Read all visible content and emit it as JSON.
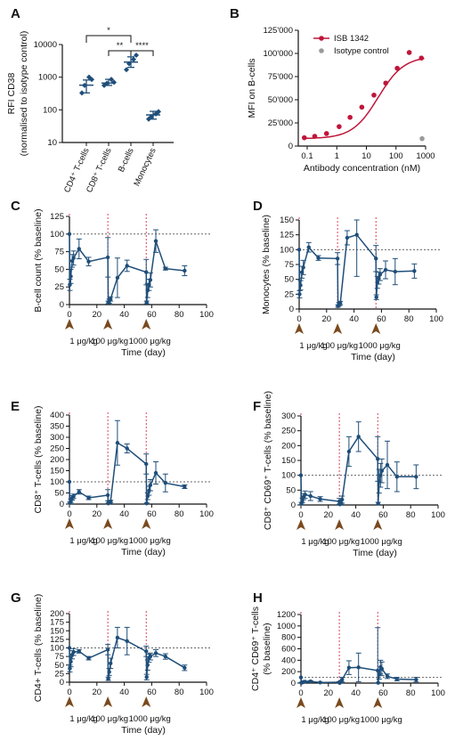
{
  "colors": {
    "series": "#1f4e79",
    "dose_line": "#d9435b",
    "baseline": "#666666",
    "arrow": "#7a4a1e",
    "fit": "#c0153a",
    "isotype": "#9a9a9a",
    "axis": "#111111"
  },
  "chart_data": [
    {
      "panel": "A",
      "type": "scatter",
      "ylabel": "RFI CD38",
      "ylabel2": "(normalised to isotype control)",
      "yscale": "log",
      "ylim": [
        10,
        10000
      ],
      "yticks": [
        "10",
        "100",
        "1000",
        "10000"
      ],
      "categories": [
        "CD4⁺ T-cells",
        "CD8⁺ T-cells",
        "B-cells",
        "Monocytes"
      ],
      "points": [
        [
          330,
          560,
          1000,
          850
        ],
        [
          560,
          650,
          860,
          700
        ],
        [
          1700,
          2600,
          3500,
          4700
        ],
        [
          52,
          62,
          75,
          88
        ]
      ],
      "means": [
        570,
        660,
        2900,
        70
      ],
      "sd_low": [
        330,
        560,
        2000,
        52
      ],
      "sd_high": [
        820,
        860,
        4200,
        90
      ],
      "significance": [
        {
          "from": 0,
          "to": 2,
          "label": "*"
        },
        {
          "from": 1,
          "to": 2,
          "label": "**"
        },
        {
          "from": 2,
          "to": 3,
          "label": "****"
        }
      ]
    },
    {
      "panel": "B",
      "type": "scatter",
      "xlabel": "Antibody concentration (nM)",
      "ylabel": "MFI on B-cells",
      "xscale": "log",
      "xlim": [
        0.05,
        1000
      ],
      "ylim": [
        0,
        125000
      ],
      "xticks": [
        {
          "v": 0.1,
          "t": "0.1"
        },
        {
          "v": 1,
          "t": "1"
        },
        {
          "v": 10,
          "t": "10"
        },
        {
          "v": 100,
          "t": "100"
        },
        {
          "v": 1000,
          "t": "1000"
        }
      ],
      "yticks": [
        {
          "v": 0,
          "t": "0"
        },
        {
          "v": 25000,
          "t": "25'000"
        },
        {
          "v": 50000,
          "t": "50'000"
        },
        {
          "v": 75000,
          "t": "75'000"
        },
        {
          "v": 100000,
          "t": "100'000"
        },
        {
          "v": 125000,
          "t": "125'000"
        }
      ],
      "legend": [
        "ISB 1342",
        "Isotype control"
      ],
      "series": [
        {
          "name": "ISB 1342",
          "x": [
            0.08,
            0.18,
            0.45,
            1.2,
            2.8,
            7,
            18,
            45,
            110,
            280,
            720
          ],
          "y": [
            9000,
            10500,
            13500,
            21000,
            31000,
            42000,
            55000,
            68000,
            84000,
            101000,
            95000
          ]
        },
        {
          "name": "Isotype control",
          "x": [
            760
          ],
          "y": [
            8000
          ]
        }
      ],
      "fit": {
        "bottom": 8000,
        "top": 97000,
        "ec50": 25,
        "hill": 1
      }
    },
    {
      "panel": "C",
      "type": "line",
      "xlabel": "Time (day)",
      "ylabel": "B-cell count (% baseline)",
      "xlim": [
        0,
        100
      ],
      "ylim": [
        0,
        125
      ],
      "ystep": 25,
      "baseline": 100,
      "dose_days": [
        0,
        28,
        56
      ],
      "dose_labels": [
        "1 μg/kg",
        "100 μg/kg",
        "1000 μg/kg"
      ],
      "x": [
        0,
        0.3,
        1,
        2,
        3,
        7,
        14,
        28,
        28.3,
        29,
        30,
        35,
        42,
        56,
        56.3,
        57,
        58,
        59,
        63,
        70,
        84
      ],
      "y": [
        100,
        28,
        40,
        62,
        66,
        79,
        61,
        67,
        3,
        5,
        8,
        38,
        55,
        46,
        3,
        20,
        28,
        35,
        90,
        51,
        48
      ],
      "err": [
        0,
        8,
        10,
        9,
        10,
        14,
        6,
        28,
        2,
        3,
        3,
        28,
        8,
        18,
        2,
        10,
        8,
        10,
        16,
        2,
        7
      ]
    },
    {
      "panel": "D",
      "type": "line",
      "xlabel": "Time (day)",
      "ylabel": "Monocytes (% baseline)",
      "xlim": [
        0,
        100
      ],
      "ylim": [
        0,
        150
      ],
      "ystep": 25,
      "baseline": 100,
      "dose_days": [
        0,
        28,
        56
      ],
      "dose_labels": [
        "1 μg/kg",
        "100 μg/kg",
        "1000 μg/kg"
      ],
      "x": [
        0,
        0.3,
        1,
        2,
        3,
        7,
        14,
        28,
        28.3,
        29,
        30,
        35,
        42,
        56,
        56.3,
        57,
        58,
        59,
        63,
        70,
        84
      ],
      "y": [
        100,
        25,
        40,
        62,
        70,
        104,
        86,
        85,
        5,
        8,
        10,
        120,
        125,
        85,
        20,
        45,
        52,
        58,
        66,
        63,
        64
      ],
      "err": [
        0,
        6,
        8,
        10,
        12,
        8,
        4,
        10,
        2,
        3,
        3,
        12,
        70,
        22,
        4,
        10,
        10,
        10,
        15,
        22,
        12
      ]
    },
    {
      "panel": "E",
      "type": "line",
      "xlabel": "Time (day)",
      "ylabel": "CD8⁺ T-cells (% baseline)",
      "xlim": [
        0,
        100
      ],
      "ylim": [
        0,
        400
      ],
      "ystep": 50,
      "baseline": 100,
      "dose_days": [
        0,
        28,
        56
      ],
      "dose_labels": [
        "1 μg/kg",
        "100 μg/kg",
        "1000 μg/kg"
      ],
      "x": [
        0,
        0.3,
        1,
        2,
        3,
        7,
        14,
        28,
        28.3,
        29,
        30,
        35,
        42,
        56,
        56.3,
        57,
        58,
        59,
        63,
        70,
        84
      ],
      "y": [
        100,
        5,
        15,
        28,
        35,
        55,
        28,
        40,
        3,
        8,
        12,
        275,
        250,
        180,
        3,
        35,
        60,
        85,
        140,
        95,
        78
      ],
      "err": [
        0,
        4,
        8,
        10,
        10,
        10,
        8,
        25,
        2,
        4,
        5,
        100,
        20,
        45,
        2,
        15,
        20,
        25,
        50,
        40,
        8
      ]
    },
    {
      "panel": "F",
      "type": "line",
      "xlabel": "Time (day)",
      "ylabel": "CD8⁺ CD69⁺ T-cells (% baseline)",
      "xlim": [
        0,
        100
      ],
      "ylim": [
        0,
        300
      ],
      "ystep": 50,
      "baseline": 100,
      "dose_days": [
        0,
        28,
        56
      ],
      "dose_labels": [
        "1 μg/kg",
        "100 μg/kg",
        "1000 μg/kg"
      ],
      "x": [
        0,
        0.3,
        1,
        2,
        3,
        7,
        14,
        28,
        28.3,
        29,
        30,
        35,
        42,
        56,
        56.3,
        57,
        58,
        59,
        63,
        70,
        84
      ],
      "y": [
        100,
        5,
        15,
        28,
        35,
        30,
        20,
        12,
        2,
        5,
        18,
        180,
        230,
        155,
        5,
        80,
        100,
        115,
        135,
        95,
        95
      ],
      "err": [
        0,
        4,
        8,
        10,
        12,
        15,
        8,
        10,
        2,
        3,
        12,
        50,
        50,
        75,
        4,
        40,
        40,
        40,
        80,
        50,
        40
      ]
    },
    {
      "panel": "G",
      "type": "line",
      "xlabel": "Time (day)",
      "ylabel": "CD4+ T-cells (% baseline)",
      "xlim": [
        0,
        100
      ],
      "ylim": [
        0,
        200
      ],
      "ystep": 25,
      "baseline": 100,
      "dose_days": [
        0,
        28,
        56
      ],
      "dose_labels": [
        "1 μg/kg",
        "100 μg/kg",
        "1000 μg/kg"
      ],
      "x": [
        0,
        0.3,
        1,
        2,
        3,
        7,
        14,
        28,
        28.3,
        29,
        30,
        35,
        42,
        56,
        56.3,
        57,
        58,
        59,
        63,
        70,
        84
      ],
      "y": [
        100,
        40,
        60,
        80,
        88,
        90,
        70,
        95,
        10,
        30,
        55,
        130,
        120,
        90,
        15,
        50,
        70,
        75,
        85,
        75,
        42
      ],
      "err": [
        0,
        10,
        15,
        12,
        10,
        5,
        5,
        15,
        5,
        10,
        15,
        30,
        40,
        15,
        8,
        15,
        12,
        10,
        10,
        8,
        8
      ]
    },
    {
      "panel": "H",
      "type": "line",
      "xlabel": "",
      "ylabel": "CD4⁺ CD69⁺ T-cells",
      "ylabel2": "(% baseline)",
      "xlim": [
        0,
        100
      ],
      "ylim": [
        0,
        1200
      ],
      "ystep": 200,
      "baseline": 100,
      "dose_days": [
        0,
        28,
        56
      ],
      "dose_labels": [
        "1 μg/kg",
        "100 μg/kg",
        "1000 μg/kg"
      ],
      "x": [
        0,
        0.3,
        1,
        2,
        3,
        7,
        14,
        28,
        28.3,
        29,
        30,
        35,
        42,
        56,
        56.3,
        57,
        58,
        59,
        63,
        70,
        84
      ],
      "y": [
        100,
        5,
        10,
        20,
        25,
        30,
        10,
        15,
        3,
        20,
        60,
        270,
        275,
        220,
        5,
        150,
        280,
        250,
        120,
        70,
        60
      ],
      "err": [
        0,
        5,
        8,
        10,
        10,
        12,
        8,
        10,
        2,
        15,
        40,
        120,
        250,
        750,
        4,
        80,
        120,
        120,
        40,
        30,
        40
      ]
    }
  ]
}
